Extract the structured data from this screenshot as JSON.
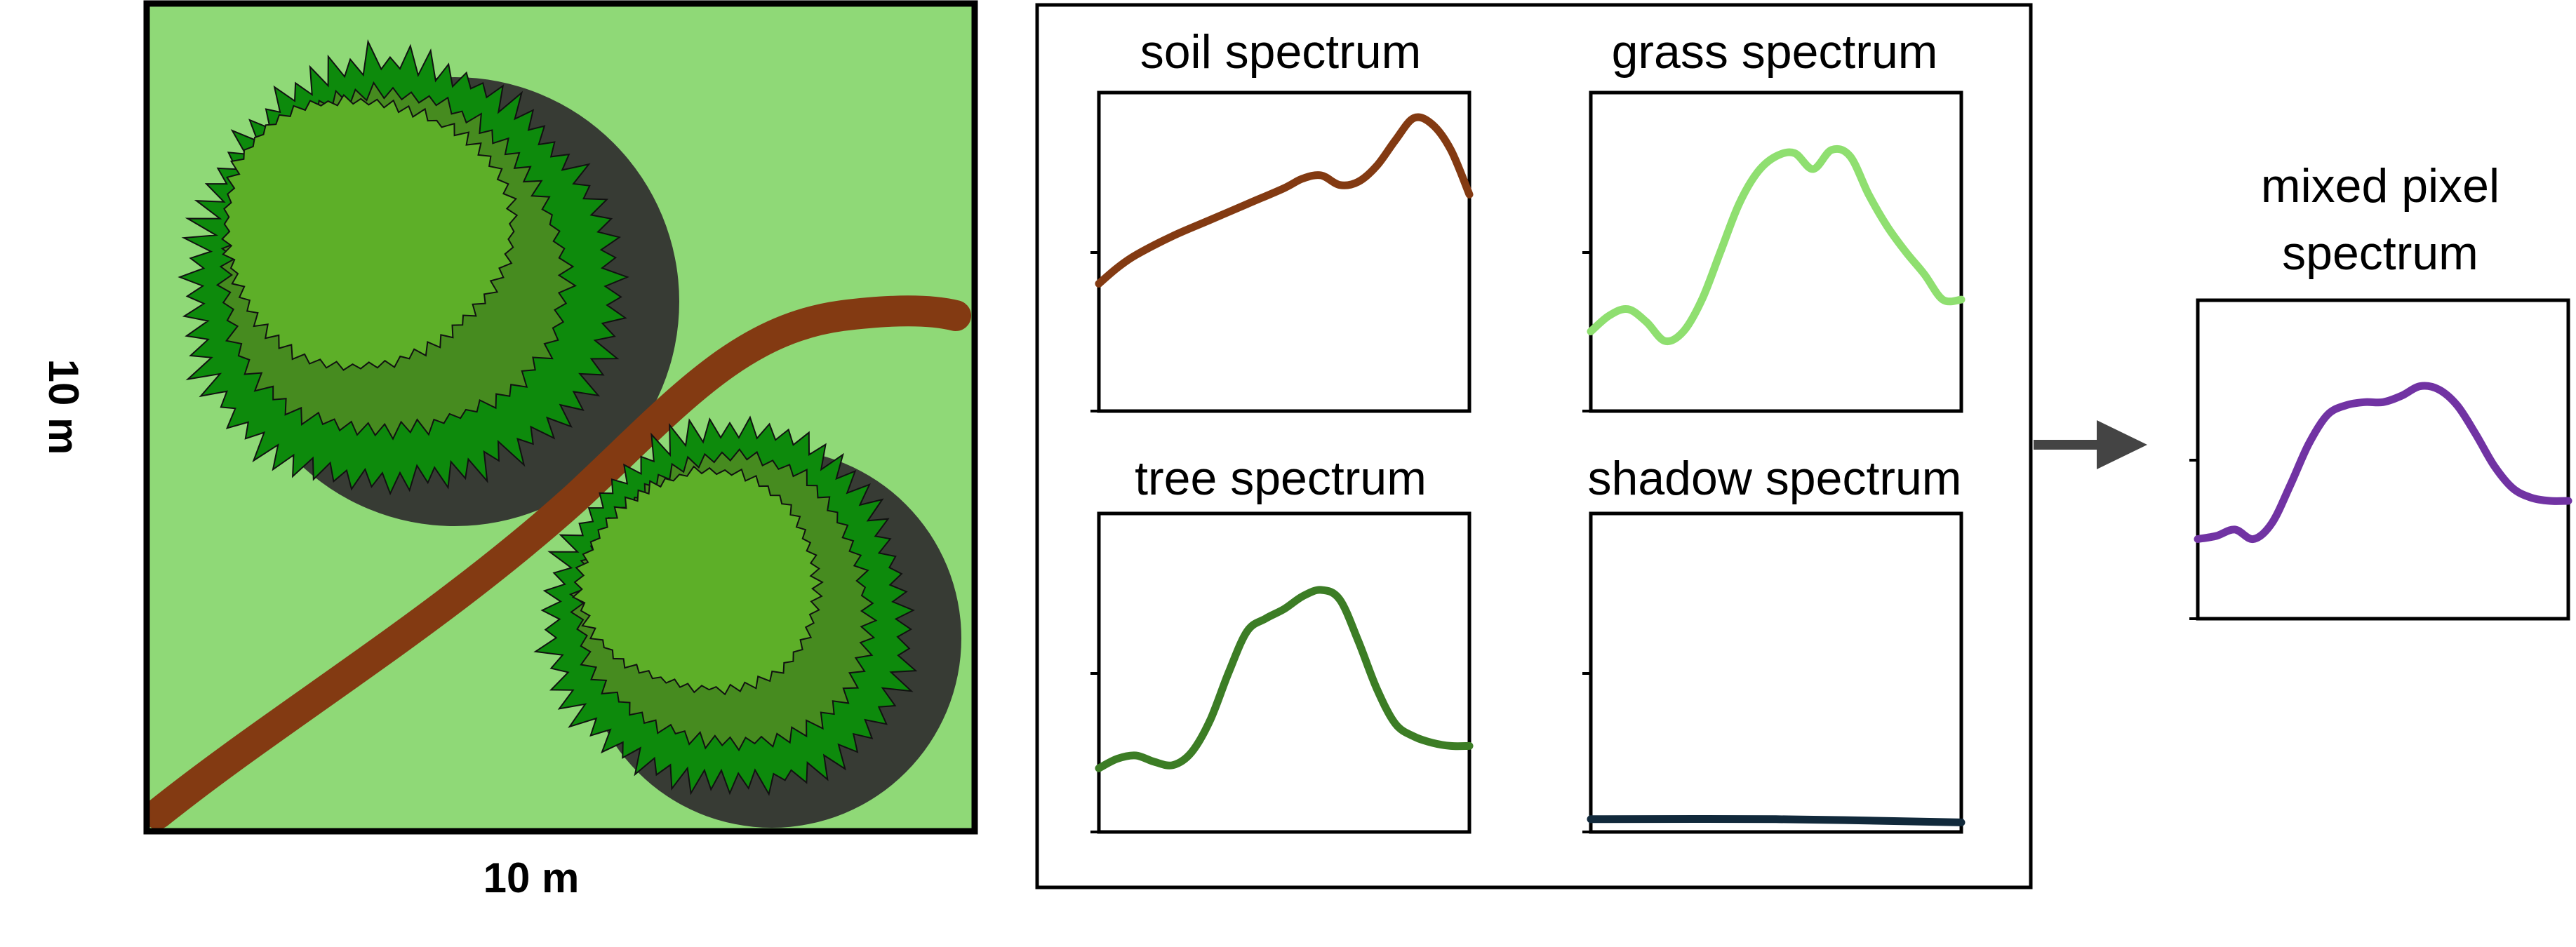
{
  "pixel_scene": {
    "width_label": "10 m",
    "height_label": "10 m",
    "colors": {
      "grass": "#8fd977",
      "path": "#833a12",
      "shadow": "#373b34",
      "tree_dark": "#0d8a0c",
      "tree_mid": "#468b1f",
      "tree_light": "#5daf28"
    }
  },
  "spectra": [
    {
      "key": "soil",
      "title": "soil spectrum",
      "color": "#833a12",
      "chart_data": {
        "type": "line",
        "x": [
          0,
          0.05,
          0.1,
          0.2,
          0.3,
          0.4,
          0.5,
          0.55,
          0.6,
          0.65,
          0.7,
          0.75,
          0.8,
          0.85,
          0.9,
          0.95,
          1.0
        ],
        "y": [
          0.4,
          0.45,
          0.49,
          0.55,
          0.6,
          0.65,
          0.7,
          0.73,
          0.74,
          0.71,
          0.72,
          0.77,
          0.85,
          0.92,
          0.9,
          0.82,
          0.68
        ],
        "ylim": [
          0,
          1
        ]
      }
    },
    {
      "key": "grass",
      "title": "grass spectrum",
      "color": "#8fdf70",
      "chart_data": {
        "type": "line",
        "x": [
          0,
          0.05,
          0.1,
          0.15,
          0.2,
          0.25,
          0.3,
          0.35,
          0.4,
          0.45,
          0.5,
          0.55,
          0.6,
          0.65,
          0.7,
          0.75,
          0.8,
          0.85,
          0.9,
          0.95,
          1.0
        ],
        "y": [
          0.25,
          0.3,
          0.32,
          0.28,
          0.22,
          0.25,
          0.35,
          0.5,
          0.65,
          0.75,
          0.8,
          0.81,
          0.76,
          0.82,
          0.8,
          0.68,
          0.58,
          0.5,
          0.43,
          0.35,
          0.35
        ],
        "ylim": [
          0,
          1
        ]
      }
    },
    {
      "key": "tree",
      "title": "tree spectrum",
      "color": "#3c7d25",
      "chart_data": {
        "type": "line",
        "x": [
          0,
          0.05,
          0.1,
          0.15,
          0.2,
          0.25,
          0.3,
          0.35,
          0.4,
          0.45,
          0.5,
          0.55,
          0.6,
          0.65,
          0.7,
          0.75,
          0.8,
          0.85,
          0.9,
          0.95,
          1.0
        ],
        "y": [
          0.2,
          0.23,
          0.24,
          0.22,
          0.21,
          0.25,
          0.35,
          0.5,
          0.63,
          0.67,
          0.7,
          0.74,
          0.76,
          0.73,
          0.6,
          0.45,
          0.34,
          0.3,
          0.28,
          0.27,
          0.27
        ],
        "ylim": [
          0,
          1
        ]
      }
    },
    {
      "key": "shadow",
      "title": "shadow spectrum",
      "color": "#11293b",
      "chart_data": {
        "type": "line",
        "x": [
          0,
          0.5,
          1.0
        ],
        "y": [
          0.04,
          0.04,
          0.03
        ],
        "ylim": [
          0,
          1
        ]
      }
    }
  ],
  "mixed": {
    "title_line1": "mixed pixel",
    "title_line2": "spectrum",
    "color": "#7133a3",
    "chart_data": {
      "type": "line",
      "x": [
        0,
        0.05,
        0.1,
        0.15,
        0.2,
        0.25,
        0.3,
        0.35,
        0.4,
        0.45,
        0.5,
        0.55,
        0.6,
        0.65,
        0.7,
        0.75,
        0.8,
        0.85,
        0.9,
        0.95,
        1.0
      ],
      "y": [
        0.25,
        0.26,
        0.28,
        0.25,
        0.3,
        0.42,
        0.55,
        0.64,
        0.67,
        0.68,
        0.68,
        0.7,
        0.73,
        0.72,
        0.67,
        0.58,
        0.48,
        0.41,
        0.38,
        0.37,
        0.37
      ],
      "ylim": [
        0,
        1
      ]
    }
  }
}
